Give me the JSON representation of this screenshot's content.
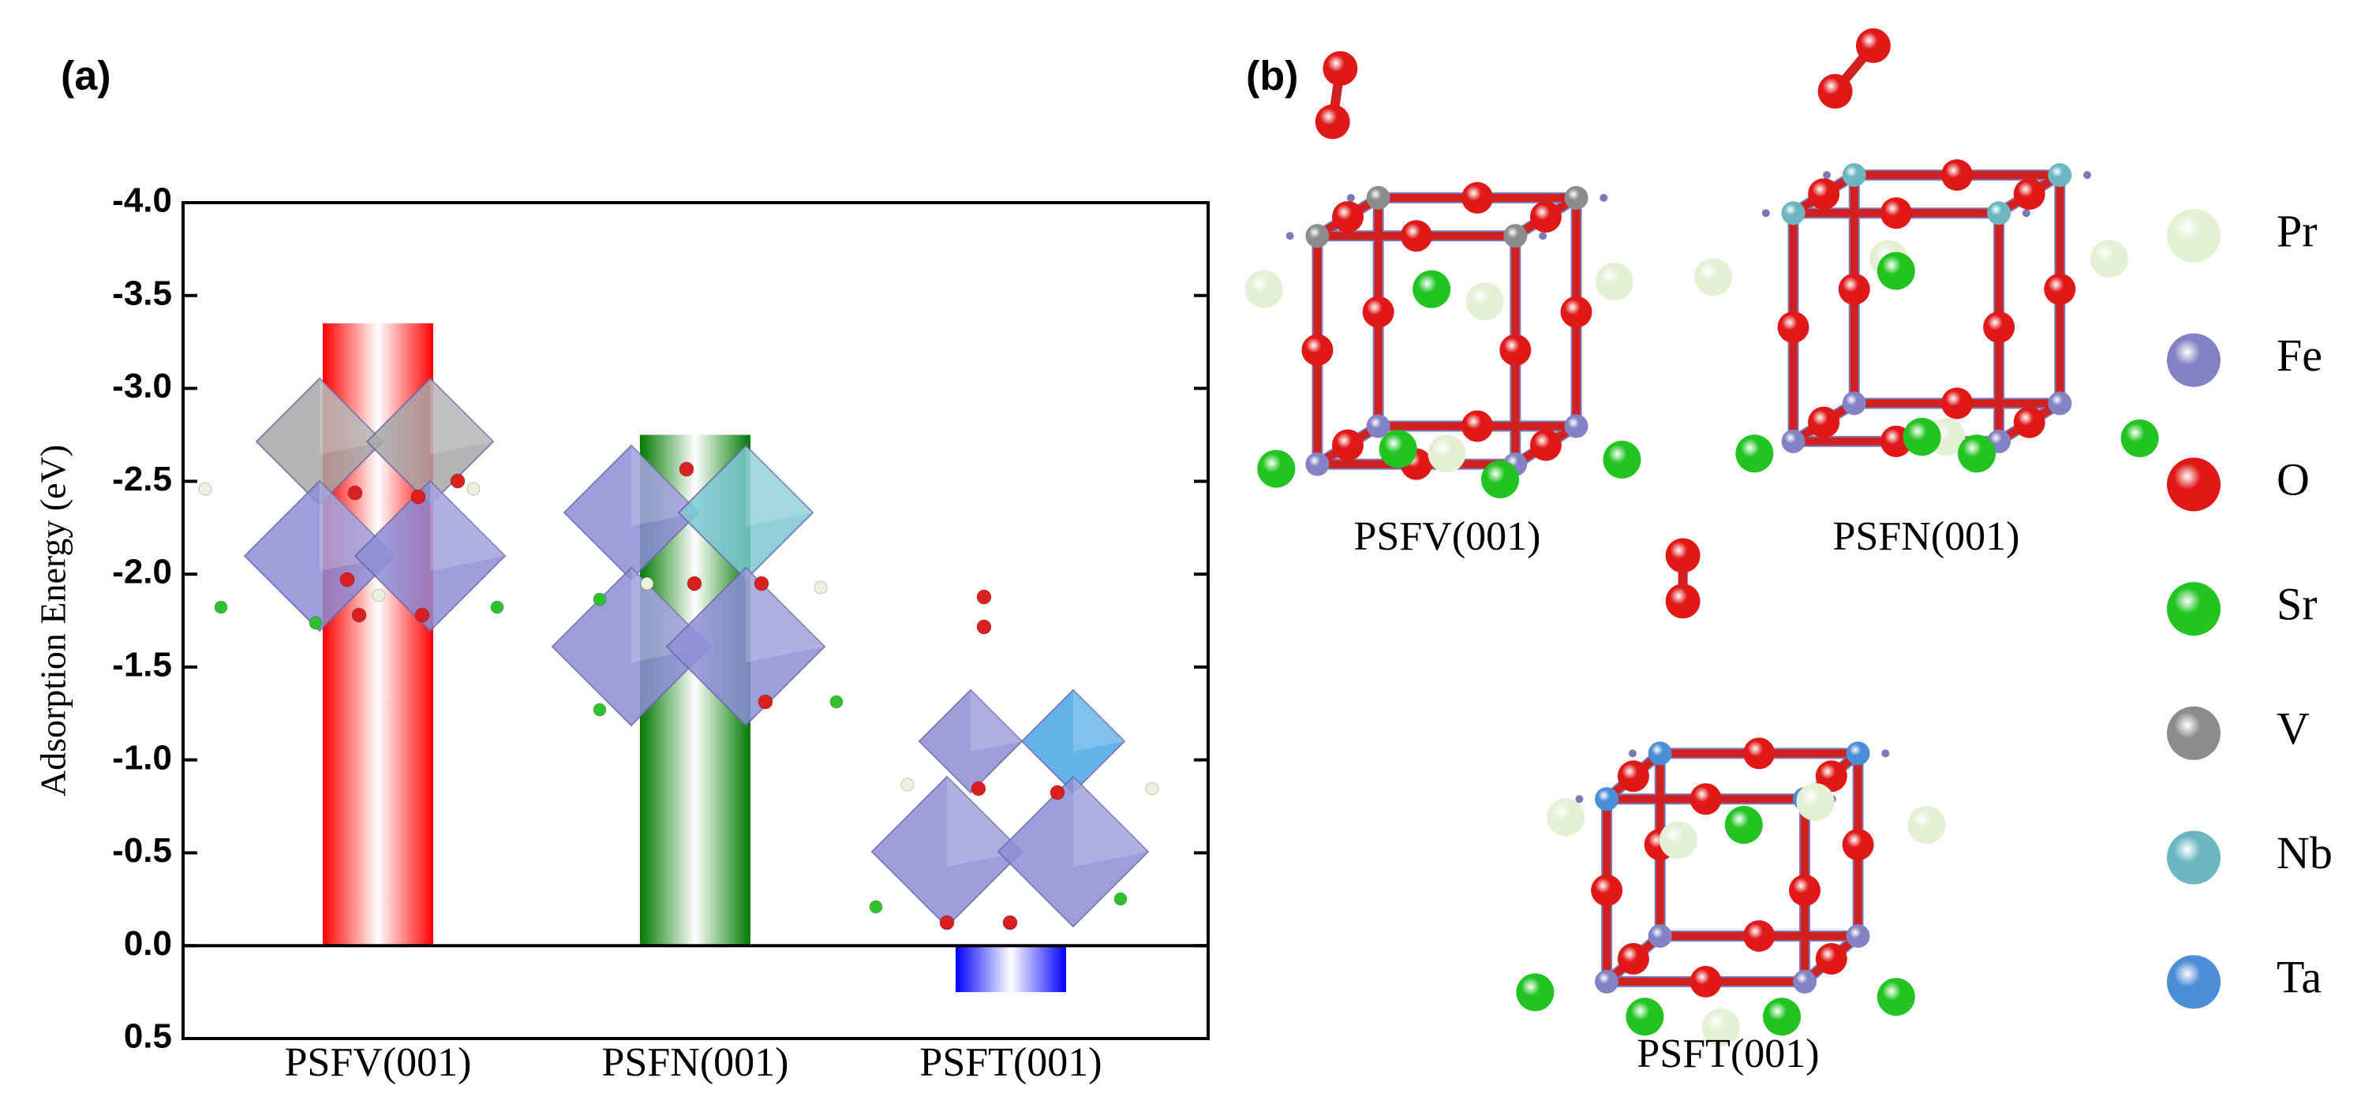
{
  "chart_data": {
    "type": "bar",
    "panel_label": "(a)",
    "y_label": "Adsorption Energy (eV)",
    "categories": [
      "PSFV(001)",
      "PSFN(001)",
      "PSFT(001)"
    ],
    "values": [
      -3.35,
      -2.75,
      0.25
    ],
    "colors": [
      "#ff0000",
      "#007a00",
      "#0000ff"
    ],
    "ylim": [
      0.5,
      -4.0
    ],
    "yticks": [
      {
        "value": -4,
        "label": "-4.0"
      },
      -3.5,
      {
        "value": -3,
        "label": "-3.0"
      },
      -2.5,
      {
        "value": -2,
        "label": "-2.0"
      },
      -1.5,
      {
        "value": -1,
        "label": "-1.0"
      },
      -0.5,
      {
        "value": 0,
        "label": "0.0"
      },
      0.5
    ]
  },
  "panel_b": {
    "panel_label": "(b)",
    "structures": [
      "PSFV(001)",
      "PSFN(001)",
      "PSFT(001)"
    ],
    "legend": [
      {
        "name": "Pr",
        "color": "#e4f0d4"
      },
      {
        "name": "Fe",
        "color": "#8282c4"
      },
      {
        "name": "O",
        "color": "#e01818"
      },
      {
        "name": "Sr",
        "color": "#22c422"
      },
      {
        "name": "V",
        "color": "#8c8c8c"
      },
      {
        "name": "Nb",
        "color": "#6cb6c0"
      },
      {
        "name": "Ta",
        "color": "#4c8ed6"
      }
    ]
  }
}
